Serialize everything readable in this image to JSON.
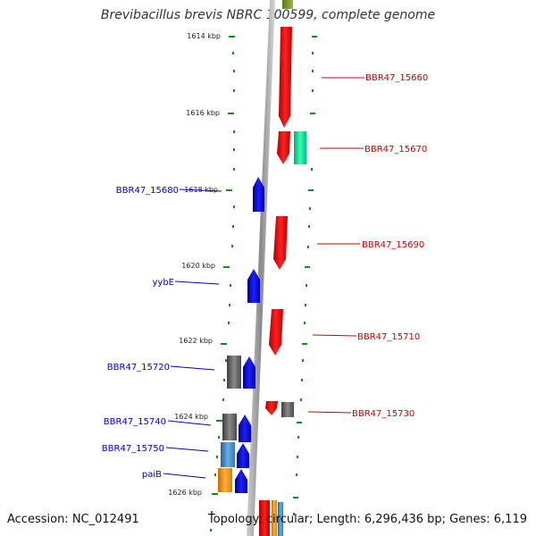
{
  "title": "Brevibacillus brevis NBRC 100599, complete genome",
  "footer": {
    "accession": "Accession: NC_012491",
    "summary": "Topology: circular; Length: 6,296,436 bp; Genes: 6,119"
  },
  "colors": {
    "forward": "#ff0000",
    "reverse": "#0000ff",
    "gray": "#6e6e6e",
    "teal": "#00e8a0",
    "steel": "#4a8fc8",
    "orange": "#ff9a10",
    "tick": "#1a8a1a",
    "backbone": "#8a8a8a"
  },
  "scale": {
    "unit": "kbp",
    "ticks": [
      {
        "label": "1614 kbp"
      },
      {
        "label": "1616 kbp"
      },
      {
        "label": "1618 kbp"
      },
      {
        "label": "1620 kbp"
      },
      {
        "label": "1622 kbp"
      },
      {
        "label": "1624 kbp"
      },
      {
        "label": "1626 kbp"
      }
    ]
  },
  "genes": {
    "labeled_forward": [
      "BBR47_15660",
      "BBR47_15670",
      "BBR47_15690",
      "BBR47_15710",
      "BBR47_15730"
    ],
    "labeled_reverse": [
      "BBR47_15680",
      "yybE",
      "BBR47_15720",
      "BBR47_15740",
      "BBR47_15750",
      "paiB"
    ]
  }
}
